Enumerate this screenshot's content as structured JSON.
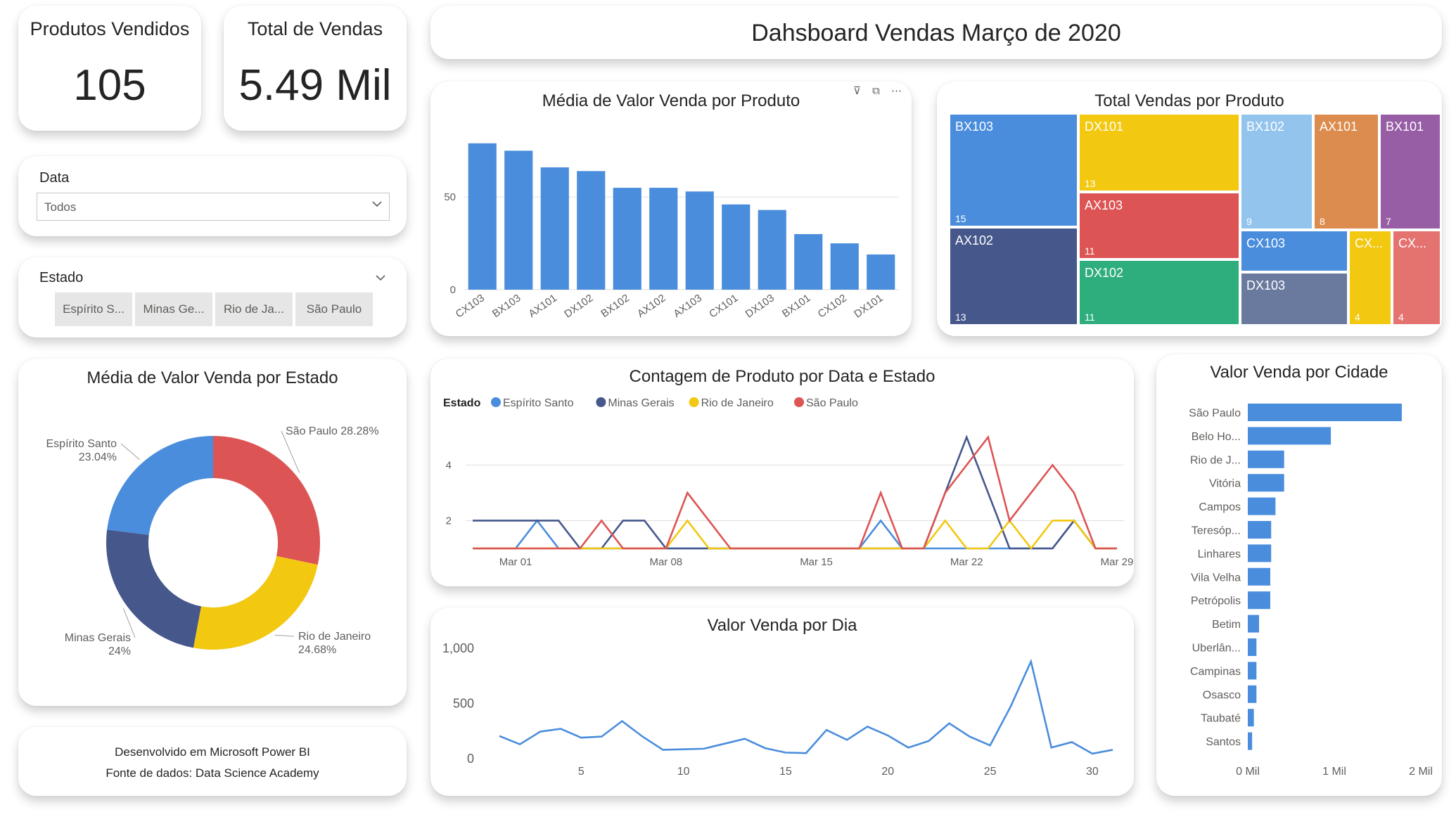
{
  "header": {
    "title": "Dahsboard Vendas Março de 2020"
  },
  "kpis": {
    "produtos": {
      "label": "Produtos Vendidos",
      "value": "105"
    },
    "vendas": {
      "label": "Total de Vendas",
      "value": "5.49 Mil"
    }
  },
  "slicer_data": {
    "label": "Data",
    "selected": "Todos"
  },
  "slicer_estado": {
    "label": "Estado",
    "options": [
      "Espírito S...",
      "Minas Ge...",
      "Rio de Ja...",
      "São Paulo"
    ]
  },
  "footer": {
    "line1": "Desenvolvido em Microsoft Power BI",
    "line2": "Fonte de dados: Data Science Academy"
  },
  "colors": {
    "blue": "#4a8ddd",
    "navy": "#46578b",
    "yellow": "#f2c811",
    "red": "#dd5454",
    "lightblue": "#93c4ee",
    "orange": "#dc8c4e",
    "purple": "#975ea5",
    "green": "#2eae7c",
    "slate": "#6a799e",
    "coral": "#e47370"
  },
  "chart_data": [
    {
      "id": "bar_produto",
      "type": "bar",
      "title": "Média de Valor Venda por Produto",
      "categories": [
        "CX103",
        "BX103",
        "AX101",
        "DX102",
        "BX102",
        "AX102",
        "AX103",
        "CX101",
        "DX103",
        "BX101",
        "CX102",
        "DX101"
      ],
      "values": [
        79,
        75,
        66,
        64,
        55,
        55,
        53,
        46,
        43,
        30,
        25,
        19
      ],
      "ylim": [
        0,
        85
      ],
      "yticks": [
        0,
        50
      ],
      "grid": true
    },
    {
      "id": "treemap_produto",
      "type": "treemap",
      "title": "Total Vendas por Produto",
      "items": [
        {
          "name": "BX103",
          "value": 15,
          "color": "#4a8ddd"
        },
        {
          "name": "AX102",
          "value": 13,
          "color": "#46578b"
        },
        {
          "name": "DX101",
          "value": 13,
          "color": "#f2c811"
        },
        {
          "name": "AX103",
          "value": 11,
          "color": "#dd5454"
        },
        {
          "name": "DX102",
          "value": 11,
          "color": "#2eae7c"
        },
        {
          "name": "BX102",
          "value": 9,
          "color": "#93c4ee"
        },
        {
          "name": "AX101",
          "value": 8,
          "color": "#dc8c4e"
        },
        {
          "name": "BX101",
          "value": 7,
          "color": "#975ea5"
        },
        {
          "name": "CX103",
          "value": null,
          "color": "#4a8ddd"
        },
        {
          "name": "DX103",
          "value": null,
          "color": "#6a799e"
        },
        {
          "name": "CX...",
          "value": 4,
          "color": "#f2c811"
        },
        {
          "name": "CX...",
          "value": 4,
          "color": "#e47370"
        }
      ]
    },
    {
      "id": "donut_estado",
      "type": "pie",
      "title": "Média de Valor Venda por Estado",
      "slices": [
        {
          "name": "São Paulo",
          "label": "São Paulo 28.28%",
          "value": 28.28,
          "color": "#dd5454"
        },
        {
          "name": "Rio de Janeiro",
          "label": "Rio de Janeiro",
          "pct": "24.68%",
          "value": 24.68,
          "color": "#f2c811"
        },
        {
          "name": "Minas Gerais",
          "label": "Minas Gerais",
          "pct": "24%",
          "value": 24.0,
          "color": "#46578b"
        },
        {
          "name": "Espírito Santo",
          "label": "Espírito Santo",
          "pct": "23.04%",
          "value": 23.04,
          "color": "#4a8ddd"
        }
      ]
    },
    {
      "id": "line_contagem",
      "type": "line",
      "title": "Contagem de Produto por Data e Estado",
      "legend_title": "Estado",
      "legend_position": "top-left",
      "x": [
        1,
        2,
        3,
        4,
        5,
        6,
        7,
        8,
        9,
        10,
        11,
        12,
        13,
        14,
        15,
        16,
        17,
        18,
        19,
        20,
        21,
        22,
        23,
        24,
        25,
        26,
        27,
        28,
        29,
        30,
        31
      ],
      "xticks": [
        {
          "x": 3,
          "label": "Mar 01"
        },
        {
          "x": 10,
          "label": "Mar 08"
        },
        {
          "x": 17,
          "label": "Mar 15"
        },
        {
          "x": 24,
          "label": "Mar 22"
        },
        {
          "x": 31,
          "label": "Mar 29"
        }
      ],
      "ylim": [
        1,
        5.4
      ],
      "yticks": [
        2,
        4
      ],
      "grid": true,
      "series": [
        {
          "name": "Espírito Santo",
          "color": "#4a8ddd",
          "values": [
            1,
            1,
            1,
            2,
            1,
            1,
            1,
            1,
            1,
            1,
            1,
            1,
            1,
            1,
            1,
            1,
            1,
            1,
            1,
            2,
            1,
            1,
            1,
            1,
            1,
            1,
            1,
            1,
            2,
            1,
            1
          ]
        },
        {
          "name": "Minas Gerais",
          "color": "#46578b",
          "values": [
            2,
            2,
            2,
            2,
            2,
            1,
            1,
            2,
            2,
            1,
            1,
            1,
            1,
            1,
            1,
            1,
            1,
            1,
            1,
            1,
            1,
            1,
            3,
            5,
            3,
            1,
            1,
            1,
            2,
            1,
            1
          ]
        },
        {
          "name": "Rio de Janeiro",
          "color": "#f2c811",
          "values": [
            1,
            1,
            1,
            1,
            1,
            1,
            1,
            1,
            1,
            1,
            2,
            1,
            1,
            1,
            1,
            1,
            1,
            1,
            1,
            1,
            1,
            1,
            2,
            1,
            1,
            2,
            1,
            2,
            2,
            1,
            1
          ]
        },
        {
          "name": "São Paulo",
          "color": "#dd5454",
          "values": [
            1,
            1,
            1,
            1,
            1,
            1,
            2,
            1,
            1,
            1,
            3,
            2,
            1,
            1,
            1,
            1,
            1,
            1,
            1,
            3,
            1,
            1,
            3,
            4,
            5,
            2,
            3,
            4,
            3,
            1,
            1
          ]
        }
      ]
    },
    {
      "id": "line_dia",
      "type": "line",
      "title": "Valor Venda por Dia",
      "x": [
        1,
        2,
        3,
        4,
        5,
        6,
        7,
        8,
        9,
        10,
        11,
        12,
        13,
        14,
        15,
        16,
        17,
        18,
        19,
        20,
        21,
        22,
        23,
        24,
        25,
        26,
        27,
        28,
        29,
        30,
        31
      ],
      "xticks": [
        5,
        10,
        15,
        20,
        25,
        30
      ],
      "ylim": [
        0,
        1000
      ],
      "yticks": [
        {
          "v": 0,
          "label": "0"
        },
        {
          "v": 500,
          "label": "500"
        },
        {
          "v": 1000,
          "label": "1,000"
        }
      ],
      "series": [
        {
          "name": "",
          "color": "#4a8ddd",
          "values": [
            205,
            130,
            245,
            270,
            190,
            200,
            340,
            200,
            80,
            85,
            90,
            135,
            180,
            95,
            55,
            50,
            260,
            170,
            290,
            210,
            100,
            160,
            320,
            200,
            120,
            470,
            880,
            100,
            150,
            45,
            80
          ]
        }
      ]
    },
    {
      "id": "bar_cidade",
      "type": "bar",
      "orientation": "horizontal",
      "title": "Valor Venda por Cidade",
      "categories": [
        "São Paulo",
        "Belo Ho...",
        "Rio de J...",
        "Vitória",
        "Campos",
        "Teresóp...",
        "Linhares",
        "Vila Velha",
        "Petrópolis",
        "Betim",
        "Uberlân...",
        "Campinas",
        "Osasco",
        "Taubaté",
        "Santos"
      ],
      "values": [
        1.78,
        0.96,
        0.42,
        0.42,
        0.32,
        0.27,
        0.27,
        0.26,
        0.26,
        0.13,
        0.1,
        0.1,
        0.1,
        0.07,
        0.05
      ],
      "xlim": [
        0,
        2
      ],
      "xticks": [
        {
          "v": 0,
          "label": "0 Mil"
        },
        {
          "v": 1,
          "label": "1 Mil"
        },
        {
          "v": 2,
          "label": "2 Mil"
        }
      ]
    }
  ]
}
